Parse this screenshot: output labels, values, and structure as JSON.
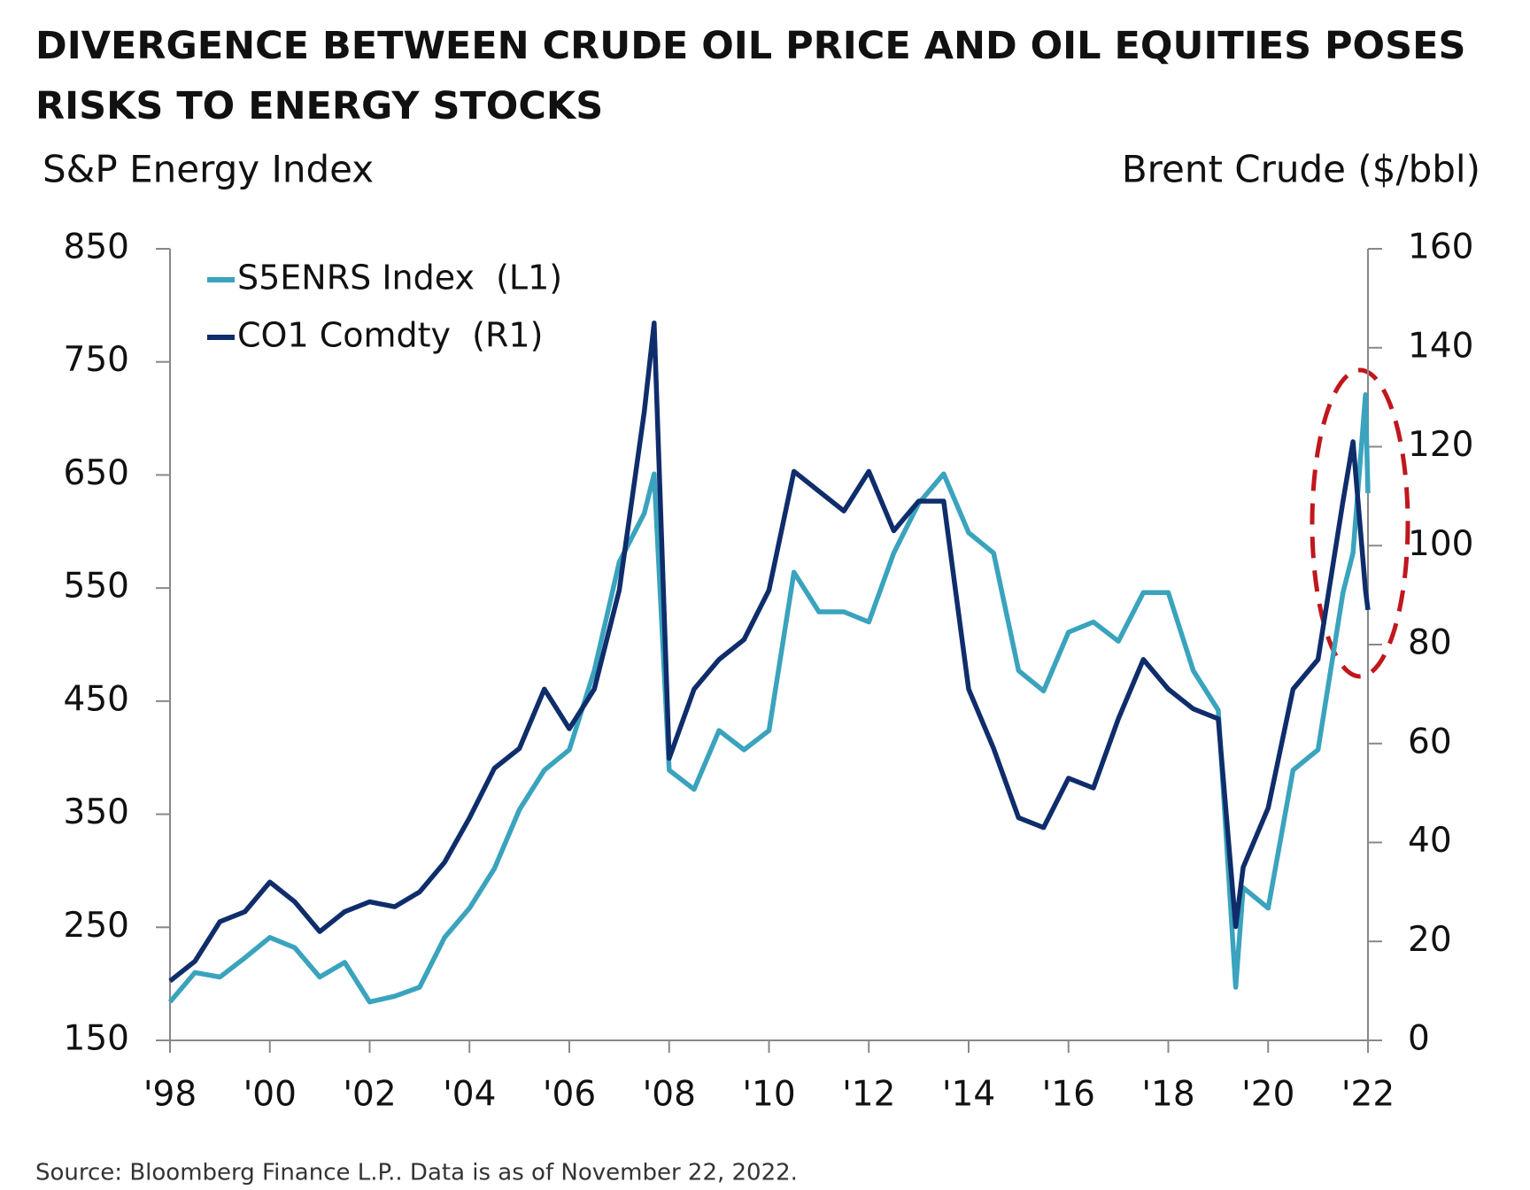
{
  "chart_data": {
    "type": "line",
    "title": "DIVERGENCE BETWEEN CRUDE OIL PRICE AND OIL EQUITIES POSES RISKS TO ENERGY STOCKS",
    "y_label": "S&P Energy Index",
    "y2_label": "Brent Crude ($/bbl)",
    "source": "Source: Bloomberg Finance L.P.. Data is as of November 22, 2022.",
    "x": [
      1998,
      1998.5,
      1999,
      1999.5,
      2000,
      2000.5,
      2001,
      2001.5,
      2002,
      2002.5,
      2003,
      2003.5,
      2004,
      2004.5,
      2005,
      2005.5,
      2006,
      2006.5,
      2007,
      2007.5,
      2007.7,
      2008,
      2008.5,
      2009,
      2009.5,
      2010,
      2010.5,
      2011,
      2011.5,
      2012,
      2012.5,
      2013,
      2013.5,
      2014,
      2014.5,
      2015,
      2015.5,
      2016,
      2016.5,
      2017,
      2017.5,
      2018,
      2018.5,
      2019,
      2019.35,
      2019.5,
      2020,
      2020.5,
      2021,
      2021.5,
      2021.7,
      2021.95,
      2022
    ],
    "series": [
      {
        "name": "S5ENRS Index  (L1)",
        "color": "#3aa3bd",
        "axis": "y",
        "values": [
          184,
          210,
          206,
          223,
          241,
          232,
          206,
          219,
          184,
          189,
          197,
          241,
          267,
          302,
          354,
          389,
          407,
          477,
          573,
          616,
          651,
          389,
          372,
          424,
          407,
          424,
          564,
          529,
          529,
          520,
          581,
          625,
          651,
          599,
          581,
          477,
          459,
          511,
          520,
          503,
          546,
          546,
          477,
          442,
          197,
          285,
          267,
          389,
          407,
          546,
          581,
          721,
          634
        ]
      },
      {
        "name": "CO1 Comdty  (R1)",
        "color": "#0f2d6b",
        "axis": "y2",
        "values": [
          12,
          16,
          24,
          26,
          32,
          28,
          22,
          26,
          28,
          27,
          30,
          36,
          45,
          55,
          59,
          71,
          63,
          71,
          91,
          127,
          145,
          57,
          71,
          77,
          81,
          91,
          115,
          111,
          107,
          115,
          103,
          109,
          109,
          71,
          59,
          45,
          43,
          53,
          51,
          65,
          77,
          71,
          67,
          65,
          23,
          35,
          47,
          71,
          77,
          109,
          121,
          91,
          87
        ]
      }
    ],
    "xlim": [
      1998,
      2022
    ],
    "xticks": [
      {
        "value": 1998,
        "label": "'98"
      },
      {
        "value": 2000,
        "label": "'00"
      },
      {
        "value": 2002,
        "label": "'02"
      },
      {
        "value": 2004,
        "label": "'04"
      },
      {
        "value": 2006,
        "label": "'06"
      },
      {
        "value": 2008,
        "label": "'08"
      },
      {
        "value": 2010,
        "label": "'10"
      },
      {
        "value": 2012,
        "label": "'12"
      },
      {
        "value": 2014,
        "label": "'14"
      },
      {
        "value": 2016,
        "label": "'16"
      },
      {
        "value": 2018,
        "label": "'18"
      },
      {
        "value": 2020,
        "label": "'20"
      },
      {
        "value": 2022,
        "label": "'22"
      }
    ],
    "ylim": [
      150,
      850
    ],
    "yticks": [
      150,
      250,
      350,
      450,
      550,
      650,
      750,
      850
    ],
    "y2lim": [
      0,
      160
    ],
    "y2ticks": [
      0,
      20,
      40,
      60,
      80,
      100,
      120,
      140,
      160
    ],
    "grid": false,
    "legend": "upper left"
  }
}
